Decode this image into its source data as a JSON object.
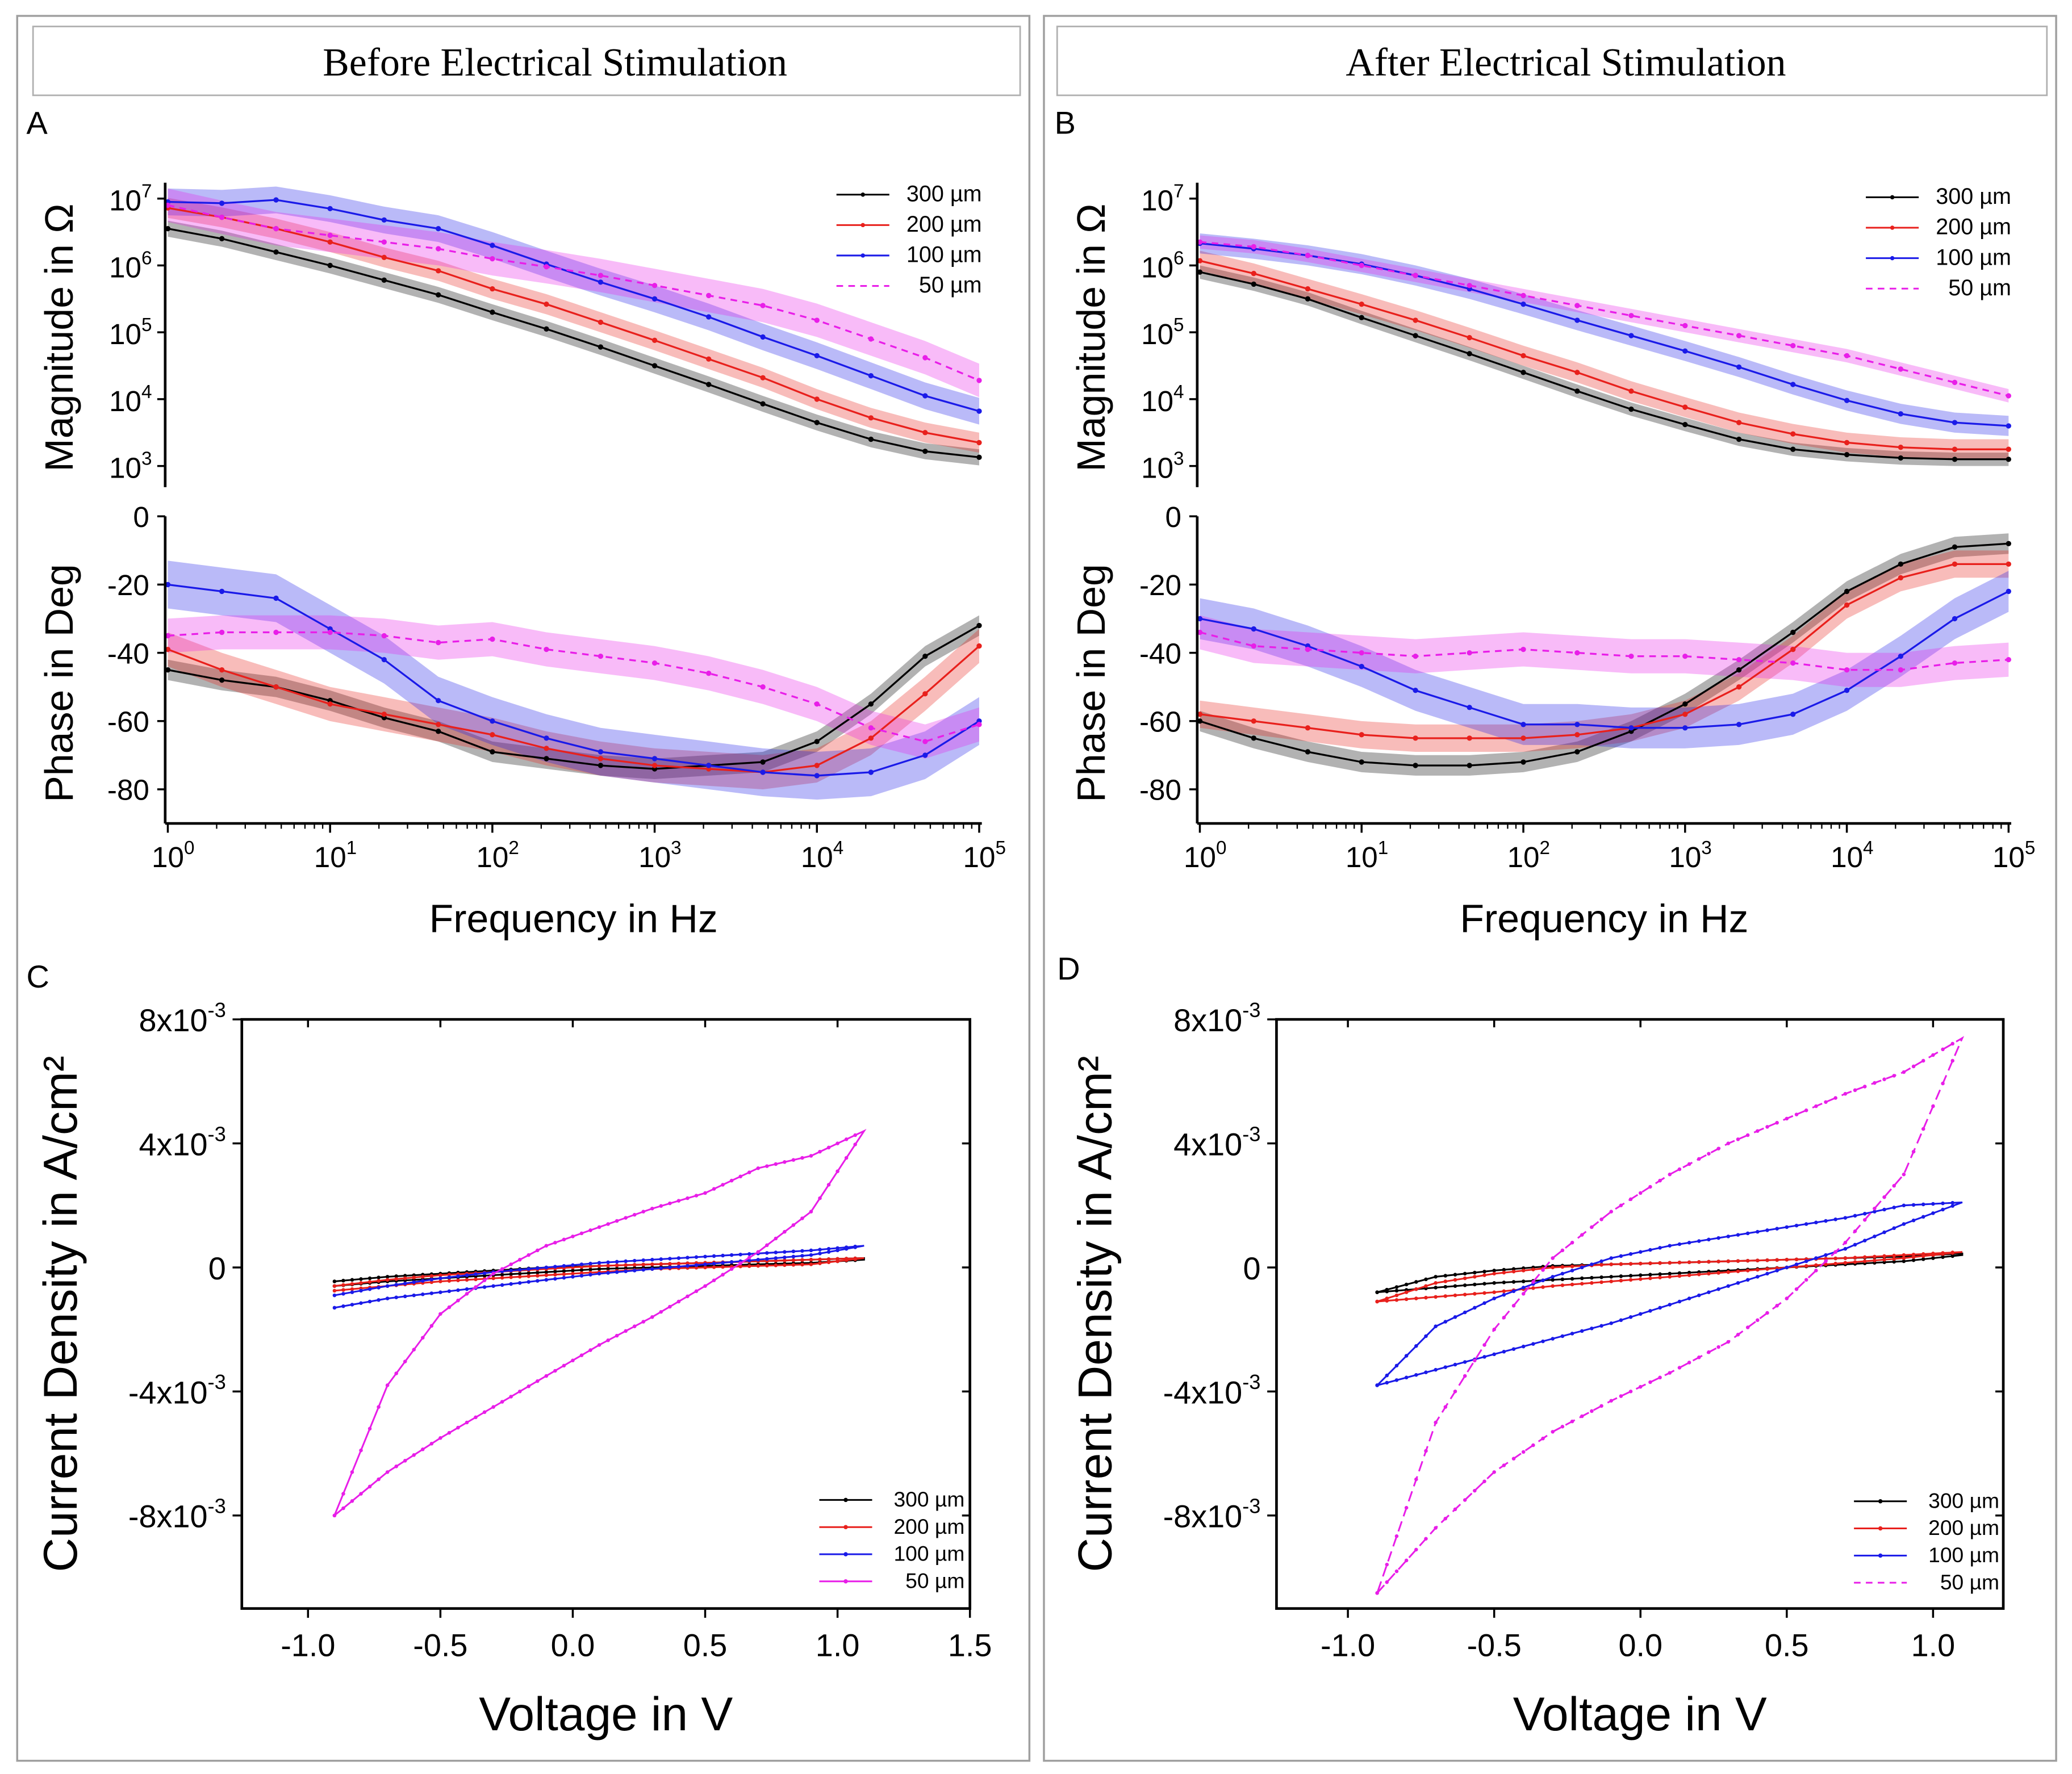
{
  "panels": {
    "left_title": "Before Electrical Stimulation",
    "right_title": "After Electrical Stimulation",
    "labels": [
      "A",
      "B",
      "C",
      "D"
    ]
  },
  "legend_labels": [
    "300 µm",
    "200 µm",
    "100 µm",
    "50 µm"
  ],
  "colors": {
    "300": "#000000",
    "200": "#e8201c",
    "100": "#1a1ae8",
    "50": "#e81ee8"
  },
  "chart_data": [
    {
      "id": "A",
      "type": "line",
      "title": "Before Electrical Stimulation",
      "xlabel": "Frequency in Hz",
      "ylabel_mag": "Magnitude in Ω",
      "ylabel_phase": "Phase in Deg",
      "x_log10": [
        0,
        0.333,
        0.667,
        1,
        1.333,
        1.667,
        2,
        2.333,
        2.667,
        3,
        3.333,
        3.667,
        4,
        4.333,
        4.667,
        5
      ],
      "xlim_log10": [
        0,
        5
      ],
      "x_ticks": [
        {
          "b": "10",
          "e": "0"
        },
        {
          "b": "10",
          "e": "1"
        },
        {
          "b": "10",
          "e": "2"
        },
        {
          "b": "10",
          "e": "3"
        },
        {
          "b": "10",
          "e": "4"
        },
        {
          "b": "10",
          "e": "5"
        }
      ],
      "mag_ticks": [
        {
          "b": "10",
          "e": "7"
        },
        {
          "b": "10",
          "e": "6"
        },
        {
          "b": "10",
          "e": "5"
        },
        {
          "b": "10",
          "e": "4"
        },
        {
          "b": "10",
          "e": "3"
        }
      ],
      "mag_ylim_log10": [
        3,
        7
      ],
      "phase_ticks": [
        "0",
        "-20",
        "-40",
        "-60",
        "-80"
      ],
      "phase_ylim": [
        -90,
        0
      ],
      "magnitude_log10": [
        {
          "name": "300 µm",
          "band": 0.12,
          "values": [
            6.55,
            6.4,
            6.2,
            6.0,
            5.78,
            5.56,
            5.3,
            5.05,
            4.78,
            4.5,
            4.22,
            3.93,
            3.65,
            3.4,
            3.22,
            3.13
          ]
        },
        {
          "name": "200 µm",
          "band": 0.15,
          "values": [
            6.86,
            6.72,
            6.55,
            6.35,
            6.12,
            5.92,
            5.65,
            5.42,
            5.15,
            4.88,
            4.6,
            4.32,
            4.0,
            3.72,
            3.5,
            3.35
          ]
        },
        {
          "name": "100 µm",
          "band": 0.2,
          "values": [
            6.95,
            6.93,
            6.98,
            6.85,
            6.68,
            6.55,
            6.3,
            6.02,
            5.75,
            5.5,
            5.23,
            4.93,
            4.65,
            4.35,
            4.05,
            3.82
          ]
        },
        {
          "name": "50 µm",
          "band": 0.25,
          "dashed": true,
          "values": [
            6.9,
            6.72,
            6.55,
            6.45,
            6.35,
            6.25,
            6.1,
            5.98,
            5.85,
            5.7,
            5.55,
            5.4,
            5.18,
            4.9,
            4.62,
            4.28
          ]
        }
      ],
      "phase_deg": [
        {
          "name": "300 µm",
          "band": 3,
          "values": [
            -45,
            -48,
            -50,
            -54,
            -59,
            -63,
            -69,
            -71,
            -73,
            -74,
            -73,
            -72,
            -66,
            -55,
            -41,
            -32
          ]
        },
        {
          "name": "200 µm",
          "band": 5,
          "values": [
            -39,
            -45,
            -50,
            -55,
            -58,
            -61,
            -64,
            -68,
            -71,
            -73,
            -74,
            -75,
            -73,
            -65,
            -52,
            -38
          ]
        },
        {
          "name": "100 µm",
          "band": 7,
          "values": [
            -20,
            -22,
            -24,
            -33,
            -42,
            -54,
            -60,
            -65,
            -69,
            -71,
            -73,
            -75,
            -76,
            -75,
            -70,
            -60
          ]
        },
        {
          "name": "50 µm",
          "band": 5,
          "dashed": true,
          "values": [
            -35,
            -34,
            -34,
            -34,
            -35,
            -37,
            -36,
            -39,
            -41,
            -43,
            -46,
            -50,
            -55,
            -62,
            -66,
            -61
          ]
        }
      ]
    },
    {
      "id": "B",
      "type": "line",
      "title": "After Electrical Stimulation",
      "xlabel": "Frequency in Hz",
      "ylabel_mag": "Magnitude in Ω",
      "ylabel_phase": "Phase in Deg",
      "x_log10": [
        0,
        0.333,
        0.667,
        1,
        1.333,
        1.667,
        2,
        2.333,
        2.667,
        3,
        3.333,
        3.667,
        4,
        4.333,
        4.667,
        5
      ],
      "xlim_log10": [
        0,
        5
      ],
      "x_ticks": [
        {
          "b": "10",
          "e": "0"
        },
        {
          "b": "10",
          "e": "1"
        },
        {
          "b": "10",
          "e": "2"
        },
        {
          "b": "10",
          "e": "3"
        },
        {
          "b": "10",
          "e": "4"
        },
        {
          "b": "10",
          "e": "5"
        }
      ],
      "mag_ticks": [
        {
          "b": "10",
          "e": "7"
        },
        {
          "b": "10",
          "e": "6"
        },
        {
          "b": "10",
          "e": "5"
        },
        {
          "b": "10",
          "e": "4"
        },
        {
          "b": "10",
          "e": "3"
        }
      ],
      "mag_ylim_log10": [
        3,
        7
      ],
      "phase_ticks": [
        "0",
        "-20",
        "-40",
        "-60",
        "-80"
      ],
      "phase_ylim": [
        -90,
        0
      ],
      "magnitude_log10": [
        {
          "name": "300 µm",
          "band": 0.1,
          "values": [
            5.9,
            5.72,
            5.5,
            5.22,
            4.95,
            4.68,
            4.4,
            4.12,
            3.85,
            3.62,
            3.4,
            3.25,
            3.17,
            3.12,
            3.1,
            3.1
          ]
        },
        {
          "name": "200 µm",
          "band": 0.15,
          "values": [
            6.07,
            5.88,
            5.65,
            5.42,
            5.18,
            4.92,
            4.65,
            4.4,
            4.12,
            3.88,
            3.65,
            3.48,
            3.35,
            3.28,
            3.25,
            3.25
          ]
        },
        {
          "name": "100 µm",
          "band": 0.15,
          "values": [
            6.33,
            6.25,
            6.15,
            6.02,
            5.85,
            5.65,
            5.42,
            5.18,
            4.95,
            4.72,
            4.48,
            4.22,
            3.98,
            3.78,
            3.65,
            3.6
          ]
        },
        {
          "name": "50 µm",
          "band": 0.1,
          "dashed": true,
          "values": [
            6.35,
            6.28,
            6.15,
            6.0,
            5.85,
            5.7,
            5.55,
            5.4,
            5.25,
            5.1,
            4.95,
            4.8,
            4.65,
            4.45,
            4.25,
            4.05
          ]
        }
      ],
      "phase_deg": [
        {
          "name": "300 µm",
          "band": 3,
          "values": [
            -60,
            -65,
            -69,
            -72,
            -73,
            -73,
            -72,
            -69,
            -63,
            -55,
            -45,
            -34,
            -22,
            -14,
            -9,
            -8
          ]
        },
        {
          "name": "200 µm",
          "band": 4,
          "values": [
            -58,
            -60,
            -62,
            -64,
            -65,
            -65,
            -65,
            -64,
            -62,
            -58,
            -50,
            -39,
            -26,
            -18,
            -14,
            -14
          ]
        },
        {
          "name": "100 µm",
          "band": 6,
          "values": [
            -30,
            -33,
            -38,
            -44,
            -51,
            -56,
            -61,
            -61,
            -62,
            -62,
            -61,
            -58,
            -51,
            -41,
            -30,
            -22
          ]
        },
        {
          "name": "50 µm",
          "band": 5,
          "dashed": true,
          "values": [
            -34,
            -38,
            -39,
            -40,
            -41,
            -40,
            -39,
            -40,
            -41,
            -41,
            -42,
            -43,
            -45,
            -45,
            -43,
            -42
          ]
        }
      ]
    },
    {
      "id": "C",
      "type": "line",
      "xlabel": "Voltage in V",
      "ylabel": "Current Density in A/cm²",
      "xlim": [
        -1.25,
        1.5
      ],
      "ylim_mA": [
        -11,
        8
      ],
      "x_ticks": [
        "-1.0",
        "-0.5",
        "0.0",
        "0.5",
        "1.0",
        "1.5"
      ],
      "x_tick_values": [
        -1.0,
        -0.5,
        0.0,
        0.5,
        1.0,
        1.5
      ],
      "y_ticks": [
        {
          "b": "8x10",
          "e": "-3",
          "v": 8
        },
        {
          "b": "4x10",
          "e": "-3",
          "v": 4
        },
        {
          "b": "0",
          "e": "",
          "v": 0
        },
        {
          "b": "-4x10",
          "e": "-3",
          "v": -4
        },
        {
          "b": "-8x10",
          "e": "-3",
          "v": -8
        }
      ],
      "voltage": [
        -0.9,
        -0.7,
        -0.5,
        -0.3,
        -0.1,
        0.1,
        0.3,
        0.5,
        0.7,
        0.9,
        1.1
      ],
      "series": [
        {
          "name": "300 µm",
          "upper": [
            -0.45,
            -0.3,
            -0.2,
            -0.1,
            0,
            0.05,
            0.1,
            0.15,
            0.2,
            0.25,
            0.3
          ],
          "lower": [
            -0.6,
            -0.45,
            -0.35,
            -0.25,
            -0.15,
            -0.05,
            0,
            0.05,
            0.1,
            0.15,
            0.25
          ]
        },
        {
          "name": "200 µm",
          "upper": [
            -0.6,
            -0.4,
            -0.25,
            -0.15,
            -0.05,
            0.05,
            0.1,
            0.15,
            0.2,
            0.25,
            0.3
          ],
          "lower": [
            -0.75,
            -0.6,
            -0.45,
            -0.35,
            -0.25,
            -0.15,
            -0.05,
            0,
            0.05,
            0.1,
            0.3
          ]
        },
        {
          "name": "100 µm",
          "upper": [
            -0.9,
            -0.6,
            -0.35,
            -0.15,
            0,
            0.15,
            0.25,
            0.35,
            0.45,
            0.55,
            0.7
          ],
          "lower": [
            -1.3,
            -1.0,
            -0.8,
            -0.6,
            -0.4,
            -0.2,
            -0.05,
            0.1,
            0.25,
            0.4,
            0.7
          ]
        },
        {
          "name": "50 µm",
          "upper": [
            -8,
            -3.8,
            -1.5,
            -0.2,
            0.7,
            1.3,
            1.9,
            2.4,
            3.2,
            3.6,
            4.4
          ],
          "lower": [
            -8,
            -6.6,
            -5.5,
            -4.5,
            -3.5,
            -2.5,
            -1.6,
            -0.6,
            0.5,
            1.8,
            4.4
          ]
        }
      ]
    },
    {
      "id": "D",
      "type": "line",
      "xlabel": "Voltage in V",
      "ylabel": "Current Density in A/cm²",
      "xlim": [
        -1.244,
        1.24
      ],
      "ylim_mA": [
        -11,
        8
      ],
      "x_ticks": [
        "-1.0",
        "-0.5",
        "0.0",
        "0.5",
        "1.0"
      ],
      "x_tick_values": [
        -1.0,
        -0.5,
        0.0,
        0.5,
        1.0
      ],
      "y_ticks": [
        {
          "b": "8x10",
          "e": "-3",
          "v": 8
        },
        {
          "b": "4x10",
          "e": "-3",
          "v": 4
        },
        {
          "b": "0",
          "e": "",
          "v": 0
        },
        {
          "b": "-4x10",
          "e": "-3",
          "v": -4
        },
        {
          "b": "-8x10",
          "e": "-3",
          "v": -8
        }
      ],
      "voltage": [
        -0.9,
        -0.7,
        -0.5,
        -0.3,
        -0.1,
        0.1,
        0.3,
        0.5,
        0.7,
        0.9,
        1.1
      ],
      "series": [
        {
          "name": "300 µm",
          "upper": [
            -0.8,
            -0.3,
            -0.1,
            0.05,
            0.1,
            0.15,
            0.2,
            0.25,
            0.3,
            0.35,
            0.45
          ],
          "lower": [
            -0.8,
            -0.65,
            -0.5,
            -0.4,
            -0.3,
            -0.2,
            -0.1,
            0,
            0.1,
            0.2,
            0.4
          ]
        },
        {
          "name": "200 µm",
          "upper": [
            -1.1,
            -0.5,
            -0.2,
            0,
            0.1,
            0.15,
            0.2,
            0.25,
            0.3,
            0.4,
            0.5
          ],
          "lower": [
            -1.1,
            -0.95,
            -0.8,
            -0.6,
            -0.45,
            -0.3,
            -0.15,
            0,
            0.15,
            0.3,
            0.5
          ]
        },
        {
          "name": "100 µm",
          "upper": [
            -3.8,
            -1.9,
            -1.0,
            -0.3,
            0.3,
            0.7,
            1.0,
            1.3,
            1.6,
            2.0,
            2.1
          ],
          "lower": [
            -3.8,
            -3.3,
            -2.8,
            -2.3,
            -1.8,
            -1.2,
            -0.6,
            0.0,
            0.6,
            1.4,
            2.1
          ]
        },
        {
          "name": "50 µm",
          "dashed": true,
          "upper": [
            -10.5,
            -5,
            -2,
            0.3,
            1.8,
            3.0,
            4.0,
            4.8,
            5.6,
            6.3,
            7.4
          ],
          "lower": [
            -10.5,
            -8.4,
            -6.6,
            -5.3,
            -4.3,
            -3.4,
            -2.4,
            -1.0,
            0.8,
            3.0,
            7.4
          ]
        }
      ]
    }
  ]
}
